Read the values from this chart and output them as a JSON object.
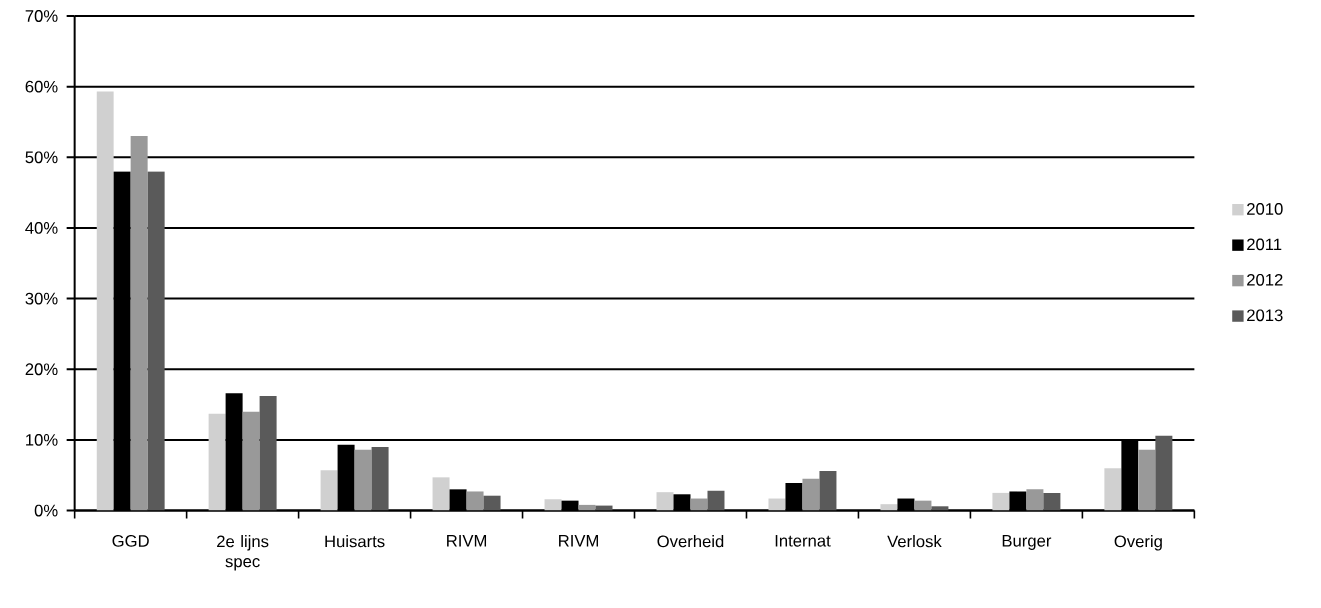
{
  "chart_data": {
    "type": "bar",
    "categories": [
      "GGD",
      "2e lijns spec",
      "Huisarts",
      "RIVM",
      "RIVM",
      "Overheid",
      "Internat",
      "Verlosk",
      "Burger",
      "Overig"
    ],
    "series": [
      {
        "name": "2010",
        "color": "#d0d0d0",
        "values": [
          59.3,
          13.7,
          5.7,
          4.7,
          1.6,
          2.6,
          1.7,
          0.9,
          2.5,
          6.0
        ]
      },
      {
        "name": "2011",
        "color": "#000000",
        "values": [
          48.0,
          16.6,
          9.3,
          3.0,
          1.4,
          2.3,
          3.9,
          1.7,
          2.7,
          10.0
        ]
      },
      {
        "name": "2012",
        "color": "#999999",
        "values": [
          53.0,
          14.0,
          8.6,
          2.7,
          0.8,
          1.7,
          4.5,
          1.4,
          3.0,
          8.6
        ]
      },
      {
        "name": "2013",
        "color": "#5a5a5a",
        "values": [
          48.0,
          16.2,
          9.0,
          2.1,
          0.7,
          2.8,
          5.6,
          0.6,
          2.5,
          10.6
        ]
      }
    ],
    "ylim": [
      0,
      70
    ],
    "yticks": [
      {
        "value": 0,
        "label": "0%"
      },
      {
        "value": 10,
        "label": "10%"
      },
      {
        "value": 20,
        "label": "20%"
      },
      {
        "value": 30,
        "label": "30%"
      },
      {
        "value": 40,
        "label": "40%"
      },
      {
        "value": 50,
        "label": "50%"
      },
      {
        "value": 60,
        "label": "60%"
      },
      {
        "value": 70,
        "label": "70%"
      }
    ],
    "grid": "y",
    "legend": "right"
  }
}
